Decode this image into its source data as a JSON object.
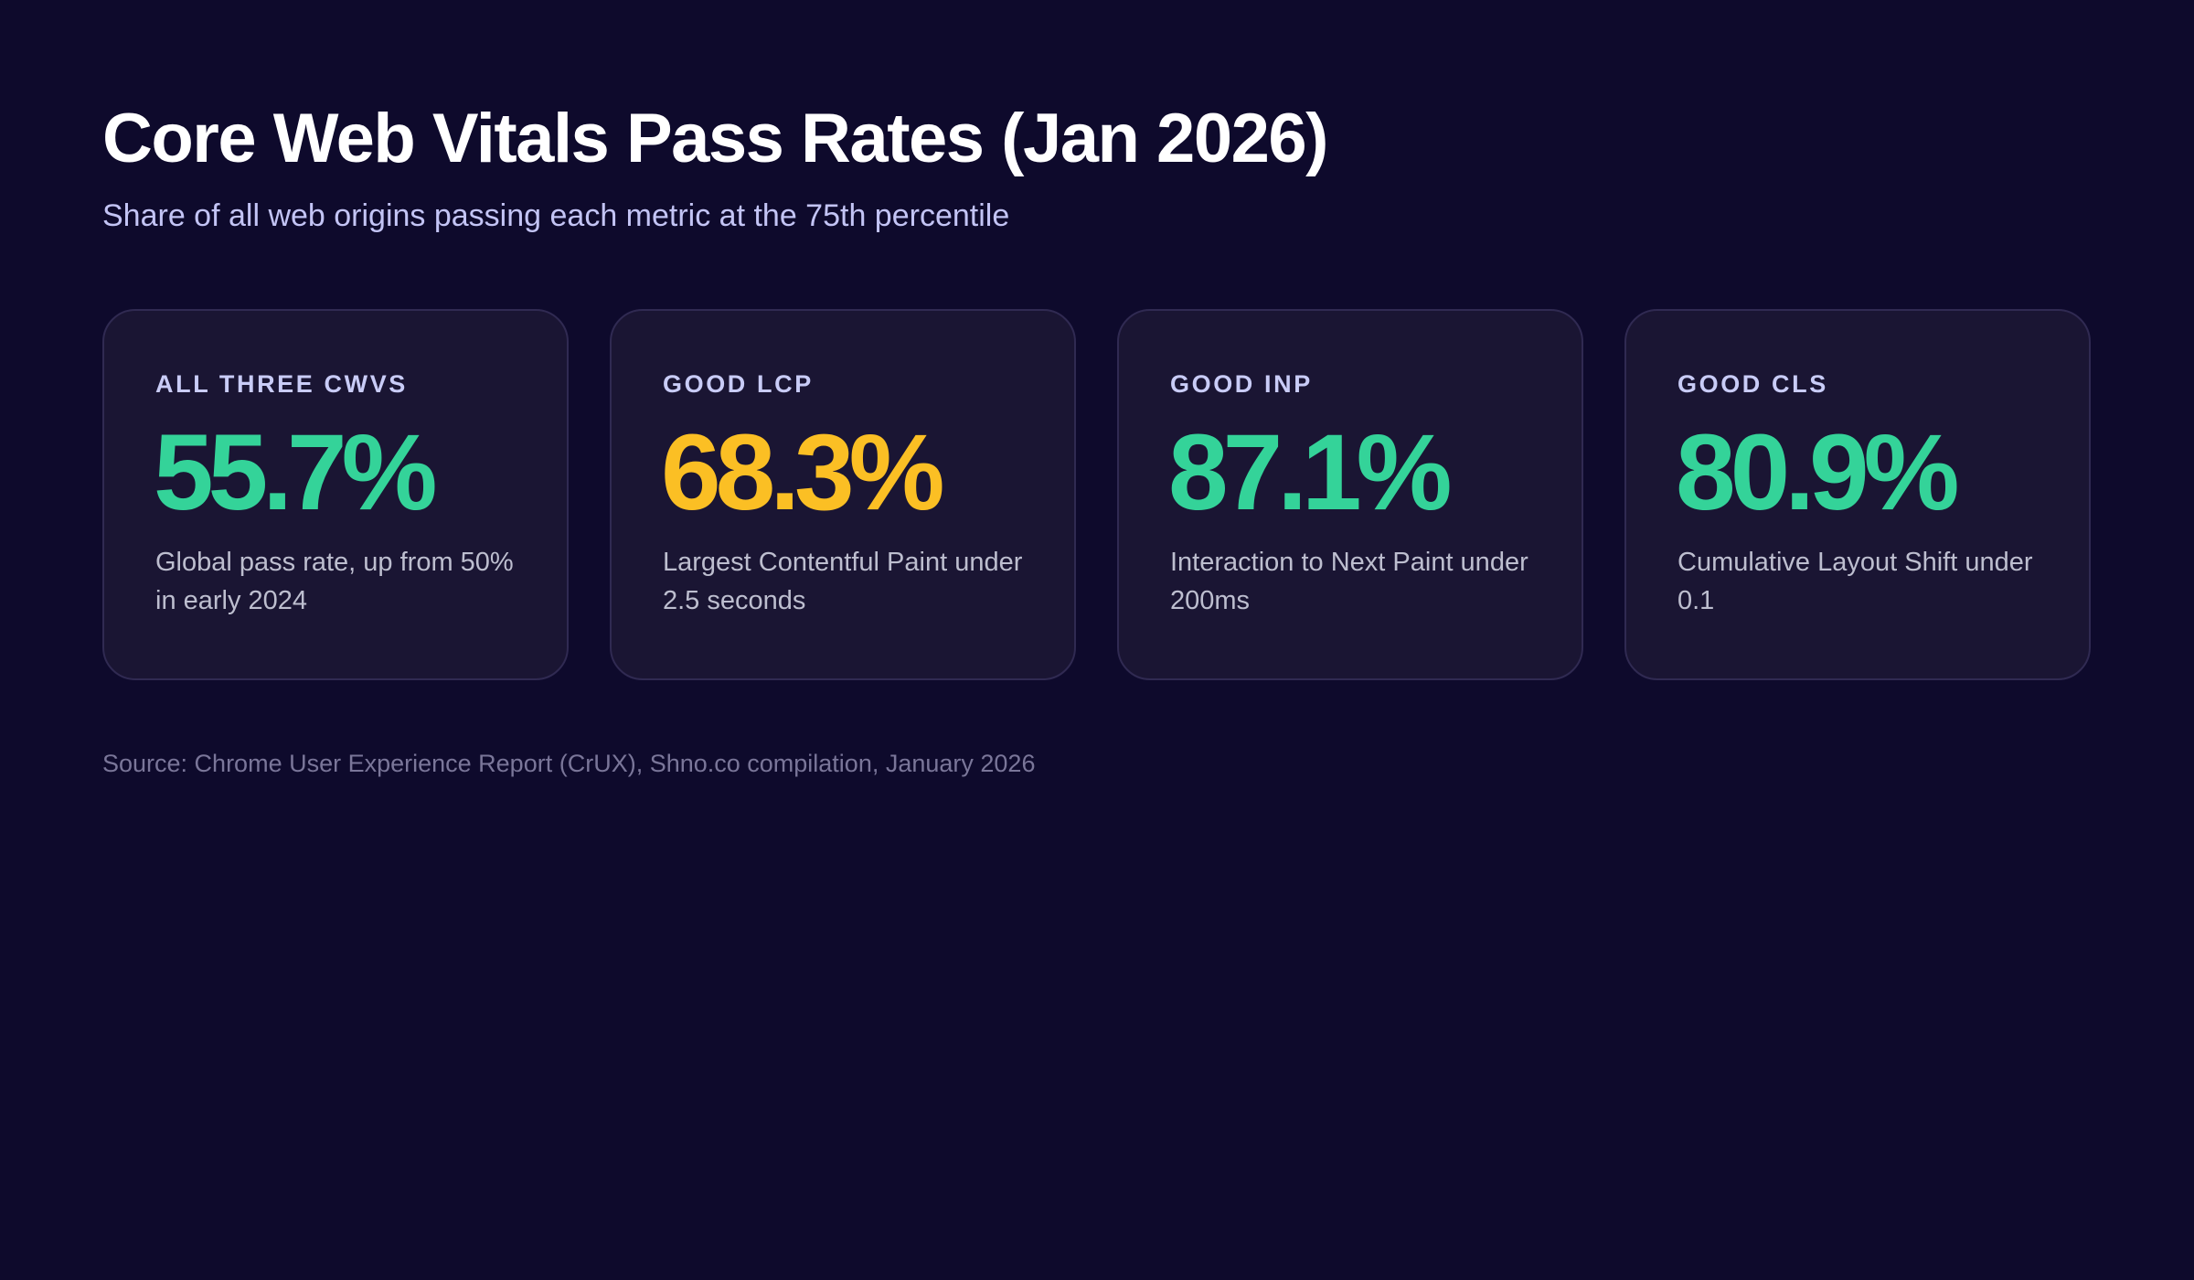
{
  "title": "Core Web Vitals Pass Rates (Jan 2026)",
  "subtitle": "Share of all web origins passing each metric at the 75th percentile",
  "source": "Source: Chrome User Experience Report (CrUX), Shno.co compilation, January 2026",
  "colors": {
    "background": "#0e0a2c",
    "card": "#1a1533",
    "good": "#34d399",
    "warning": "#fbbf24"
  },
  "chart_data": {
    "type": "table",
    "title": "Core Web Vitals Pass Rates (Jan 2026)",
    "subtitle": "Share of all web origins passing each metric at the 75th percentile",
    "unit": "%",
    "cards": [
      {
        "label": "ALL THREE CWVS",
        "value": 55.7,
        "value_text": "55.7%",
        "description": "Global pass rate, up from 50% in early 2024",
        "color": "#34d399"
      },
      {
        "label": "GOOD LCP",
        "value": 68.3,
        "value_text": "68.3%",
        "description": "Largest Contentful Paint under 2.5 seconds",
        "color": "#fbbf24"
      },
      {
        "label": "GOOD INP",
        "value": 87.1,
        "value_text": "87.1%",
        "description": "Interaction to Next Paint under 200ms",
        "color": "#34d399"
      },
      {
        "label": "GOOD CLS",
        "value": 80.9,
        "value_text": "80.9%",
        "description": "Cumulative Layout Shift under 0.1",
        "color": "#34d399"
      }
    ]
  }
}
